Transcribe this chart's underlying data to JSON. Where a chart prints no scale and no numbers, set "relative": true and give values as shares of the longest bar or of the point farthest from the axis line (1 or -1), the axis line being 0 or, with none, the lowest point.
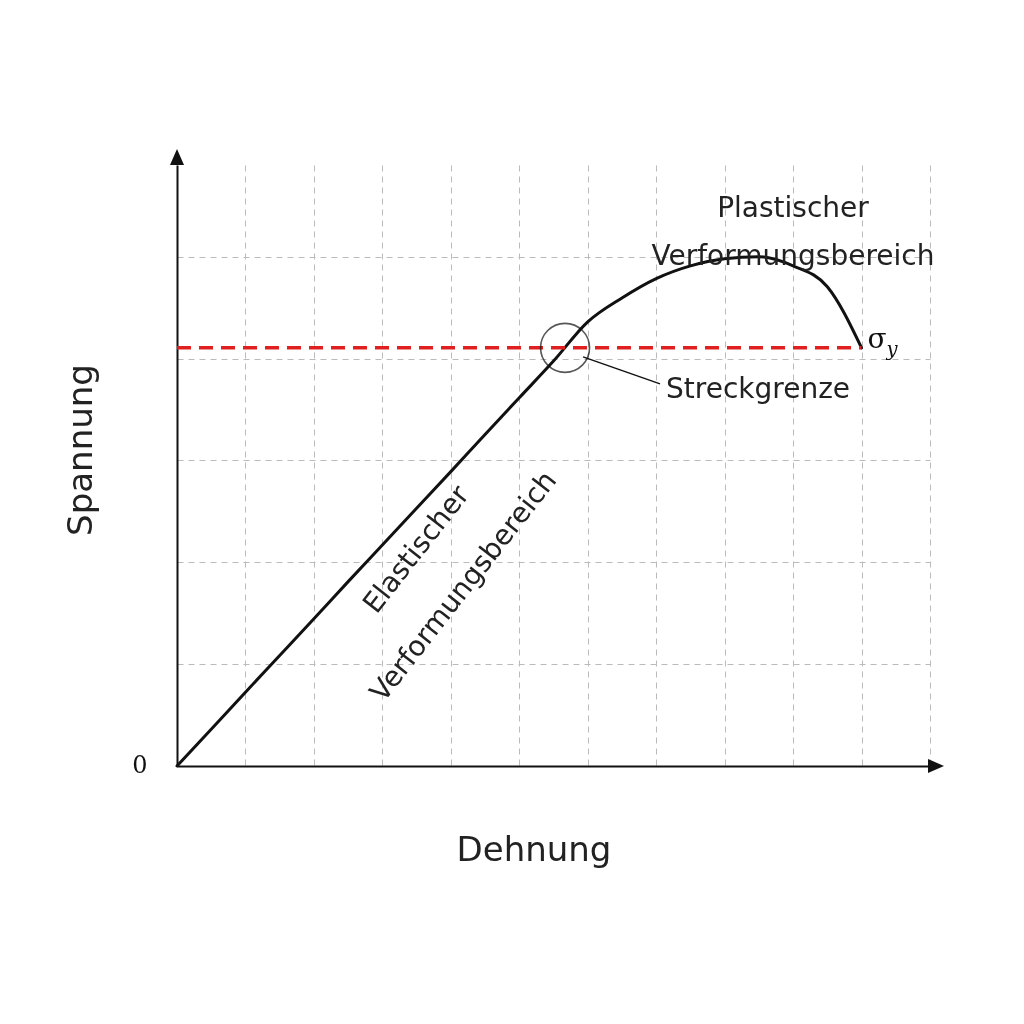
{
  "chart_data": {
    "type": "line",
    "relative": true,
    "xlabel": "Dehnung",
    "ylabel": "Spannung",
    "grid": true,
    "categories": [
      null,
      null,
      null,
      null,
      null,
      null,
      null,
      null,
      null,
      null,
      null,
      null,
      null,
      null,
      null,
      null,
      null,
      null,
      null,
      null,
      null,
      null,
      null
    ],
    "series": [
      {
        "color": "#111111",
        "values": [
          0,
          0.072,
          0.145,
          0.217,
          0.289,
          0.362,
          0.434,
          0.506,
          0.578,
          0.651,
          0.723,
          0.795,
          0.872,
          0.919,
          0.957,
          0.982,
          0.996,
          1,
          0.982,
          0.941,
          0.821,
          null,
          null
        ]
      }
    ],
    "ref_lines": [
      {
        "axis": "y",
        "value": 0.821,
        "label": "σ$_{y}$",
        "color": "#e02020",
        "line_style": "dashed"
      }
    ],
    "annotations": [
      "Plastischer Verformungsbereich",
      "Elastischer Verformungsbereich",
      "Streckgrenze",
      "0"
    ]
  }
}
